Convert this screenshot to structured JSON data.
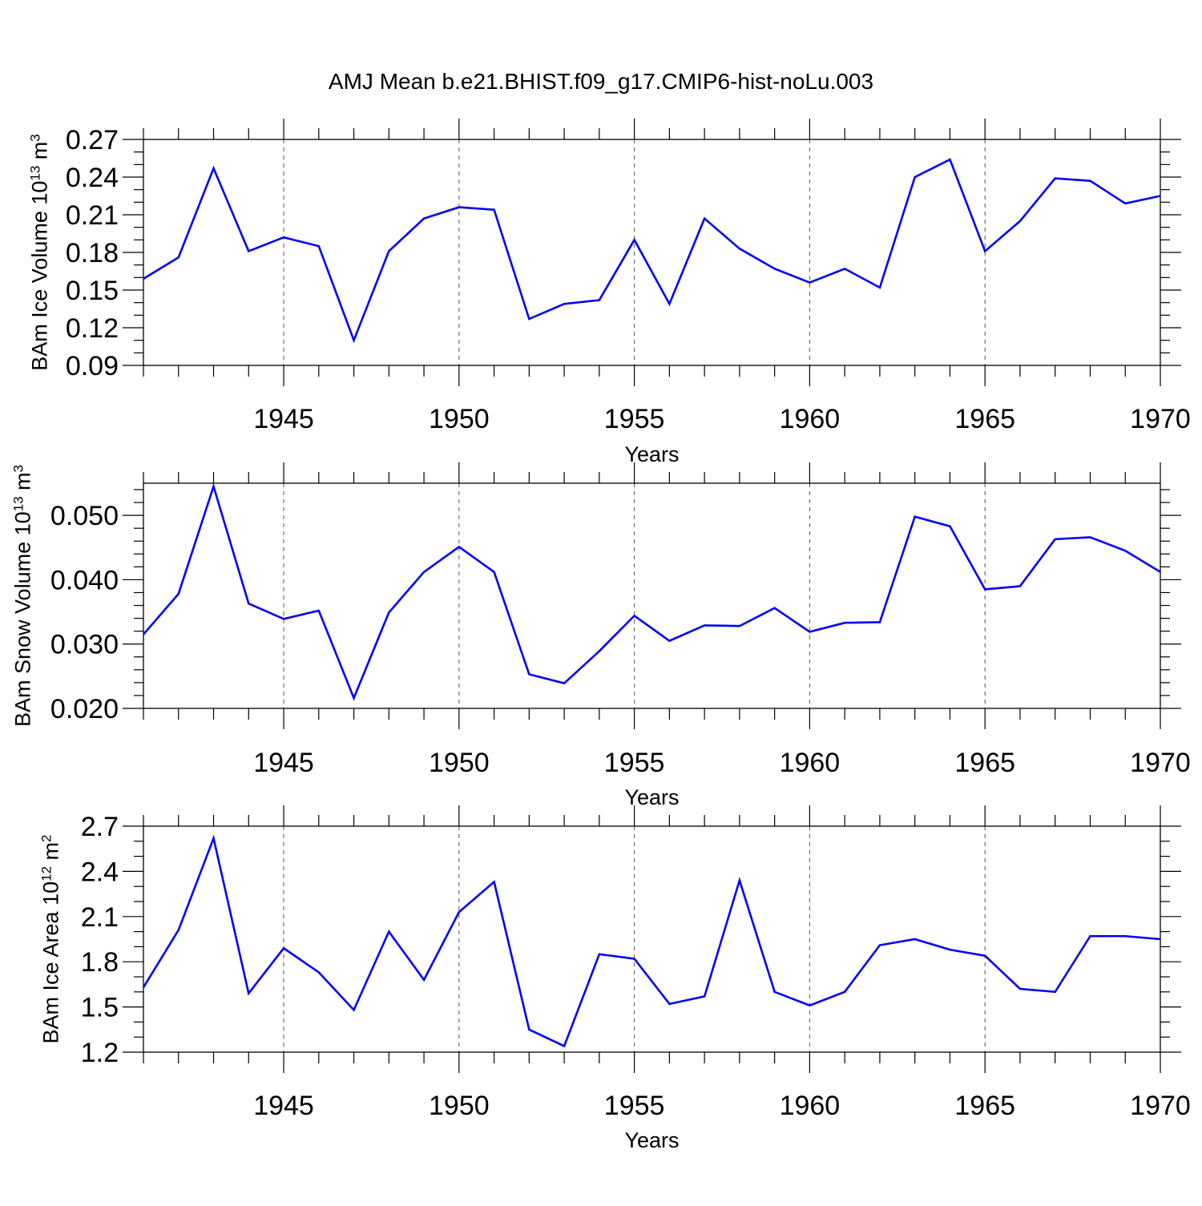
{
  "title": "AMJ Mean b.e21.BHIST.f09_g17.CMIP6-hist-noLu.003",
  "x": [
    1941,
    1942,
    1943,
    1944,
    1945,
    1946,
    1947,
    1948,
    1949,
    1950,
    1951,
    1952,
    1953,
    1954,
    1955,
    1956,
    1957,
    1958,
    1959,
    1960,
    1961,
    1962,
    1963,
    1964,
    1965,
    1966,
    1967,
    1968,
    1969,
    1970
  ],
  "colors": {
    "series": "#0000ff",
    "axes": "#000000",
    "grid": "#555555"
  },
  "chart_data": [
    {
      "type": "line",
      "title": "AMJ Mean b.e21.BHIST.f09_g17.CMIP6-hist-noLu.003",
      "ylabel": {
        "base": "BAm Ice Volume 10",
        "exp1": "13",
        "mid": " m",
        "exp2": "3"
      },
      "xlabel": "Years",
      "xlim": [
        1941,
        1970
      ],
      "ylim": [
        0.09,
        0.27
      ],
      "xticks": [
        1945,
        1950,
        1955,
        1960,
        1965,
        1970
      ],
      "yticks": [
        0.09,
        0.12,
        0.15,
        0.18,
        0.21,
        0.24,
        0.27
      ],
      "ytick_labels": [
        "0.09",
        "0.12",
        "0.15",
        "0.18",
        "0.21",
        "0.24",
        "0.27"
      ],
      "ymin_step": 0.01,
      "grid": "vertical dashed",
      "series": [
        {
          "name": "BAm Ice Volume",
          "values": [
            0.159,
            0.176,
            0.247,
            0.181,
            0.192,
            0.185,
            0.11,
            0.181,
            0.207,
            0.216,
            0.214,
            0.127,
            0.139,
            0.142,
            0.19,
            0.139,
            0.207,
            0.183,
            0.167,
            0.156,
            0.167,
            0.152,
            0.24,
            0.254,
            0.181,
            0.205,
            0.239,
            0.237,
            0.219,
            0.225
          ]
        }
      ]
    },
    {
      "type": "line",
      "title": "",
      "ylabel": {
        "base": "BAm Snow Volume 10",
        "exp1": "13",
        "mid": " m",
        "exp2": "3"
      },
      "xlabel": "Years",
      "xlim": [
        1941,
        1970
      ],
      "ylim": [
        0.02,
        0.055
      ],
      "xticks": [
        1945,
        1950,
        1955,
        1960,
        1965,
        1970
      ],
      "yticks": [
        0.02,
        0.03,
        0.04,
        0.05
      ],
      "ytick_labels": [
        "0.020",
        "0.030",
        "0.040",
        "0.050"
      ],
      "ymin_step": 0.002,
      "grid": "vertical dashed",
      "series": [
        {
          "name": "BAm Snow Volume",
          "values": [
            0.0315,
            0.0378,
            0.0545,
            0.0363,
            0.0339,
            0.0352,
            0.0216,
            0.0349,
            0.0412,
            0.0451,
            0.0412,
            0.0253,
            0.0239,
            0.0289,
            0.0344,
            0.0305,
            0.0329,
            0.0328,
            0.0356,
            0.0319,
            0.0333,
            0.0334,
            0.0498,
            0.0483,
            0.0385,
            0.039,
            0.0463,
            0.0466,
            0.0445,
            0.0412
          ]
        }
      ]
    },
    {
      "type": "line",
      "title": "",
      "ylabel": {
        "base": "BAm Ice Area 10",
        "exp1": "12",
        "mid": " m",
        "exp2": "2"
      },
      "xlabel": "Years",
      "xlim": [
        1941,
        1970
      ],
      "ylim": [
        1.2,
        2.7
      ],
      "xticks": [
        1945,
        1950,
        1955,
        1960,
        1965,
        1970
      ],
      "yticks": [
        1.2,
        1.5,
        1.8,
        2.1,
        2.4,
        2.7
      ],
      "ytick_labels": [
        "1.2",
        "1.5",
        "1.8",
        "2.1",
        "2.4",
        "2.7"
      ],
      "ymin_step": 0.1,
      "grid": "vertical dashed",
      "series": [
        {
          "name": "BAm Ice Area",
          "values": [
            1.63,
            2.01,
            2.62,
            1.59,
            1.89,
            1.73,
            1.48,
            2.0,
            1.68,
            2.13,
            2.33,
            1.35,
            1.24,
            1.85,
            1.82,
            1.52,
            1.57,
            2.34,
            1.6,
            1.51,
            1.6,
            1.91,
            1.95,
            1.88,
            1.84,
            1.62,
            1.6,
            1.97,
            1.97,
            1.95
          ]
        }
      ]
    }
  ]
}
